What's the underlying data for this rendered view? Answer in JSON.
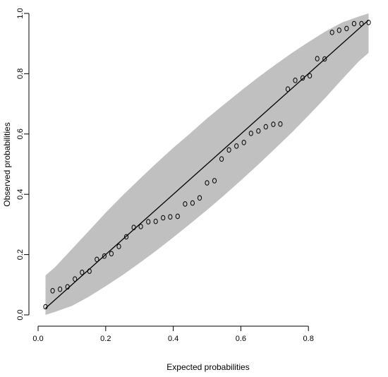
{
  "chart_data": {
    "type": "scatter",
    "title": "",
    "xlabel": "Expected probabilities",
    "ylabel": "Observed probabilities",
    "xlim": [
      0.0,
      1.0
    ],
    "ylim": [
      0.0,
      1.0
    ],
    "x_ticks": [
      "0.0",
      "0.2",
      "0.4",
      "0.6",
      "0.8"
    ],
    "y_ticks": [
      "0.0",
      "0.2",
      "0.4",
      "0.6",
      "0.8",
      "1.0"
    ],
    "grid": false,
    "legend": "none",
    "colors": {
      "band": "#c0c0c0",
      "points": "#000000",
      "line": "#000000"
    },
    "series": [
      {
        "marker": "open-circle",
        "points": [
          [
            0.022,
            0.027
          ],
          [
            0.043,
            0.08
          ],
          [
            0.065,
            0.085
          ],
          [
            0.087,
            0.093
          ],
          [
            0.109,
            0.119
          ],
          [
            0.13,
            0.141
          ],
          [
            0.152,
            0.145
          ],
          [
            0.174,
            0.184
          ],
          [
            0.196,
            0.195
          ],
          [
            0.217,
            0.203
          ],
          [
            0.239,
            0.227
          ],
          [
            0.261,
            0.259
          ],
          [
            0.283,
            0.29
          ],
          [
            0.304,
            0.293
          ],
          [
            0.326,
            0.309
          ],
          [
            0.348,
            0.31
          ],
          [
            0.37,
            0.322
          ],
          [
            0.391,
            0.325
          ],
          [
            0.413,
            0.327
          ],
          [
            0.435,
            0.368
          ],
          [
            0.457,
            0.371
          ],
          [
            0.478,
            0.388
          ],
          [
            0.5,
            0.438
          ],
          [
            0.522,
            0.445
          ],
          [
            0.543,
            0.517
          ],
          [
            0.565,
            0.547
          ],
          [
            0.587,
            0.56
          ],
          [
            0.609,
            0.572
          ],
          [
            0.63,
            0.602
          ],
          [
            0.652,
            0.61
          ],
          [
            0.674,
            0.624
          ],
          [
            0.696,
            0.632
          ],
          [
            0.717,
            0.633
          ],
          [
            0.739,
            0.749
          ],
          [
            0.761,
            0.778
          ],
          [
            0.783,
            0.786
          ],
          [
            0.804,
            0.793
          ],
          [
            0.826,
            0.85
          ],
          [
            0.848,
            0.849
          ],
          [
            0.87,
            0.937
          ],
          [
            0.891,
            0.944
          ],
          [
            0.913,
            0.95
          ],
          [
            0.935,
            0.966
          ],
          [
            0.957,
            0.966
          ],
          [
            0.978,
            0.97
          ]
        ]
      }
    ],
    "reference_line": {
      "type": "diagonal",
      "from": [
        0.022,
        0.022
      ],
      "to": [
        0.978,
        0.978
      ]
    },
    "confidence_band": {
      "lower": [
        [
          0.022,
          0.0
        ],
        [
          0.05,
          0.01
        ],
        [
          0.1,
          0.03
        ],
        [
          0.15,
          0.06
        ],
        [
          0.2,
          0.095
        ],
        [
          0.25,
          0.132
        ],
        [
          0.3,
          0.172
        ],
        [
          0.35,
          0.213
        ],
        [
          0.4,
          0.257
        ],
        [
          0.45,
          0.302
        ],
        [
          0.5,
          0.348
        ],
        [
          0.55,
          0.396
        ],
        [
          0.6,
          0.446
        ],
        [
          0.65,
          0.497
        ],
        [
          0.7,
          0.55
        ],
        [
          0.75,
          0.604
        ],
        [
          0.8,
          0.661
        ],
        [
          0.85,
          0.72
        ],
        [
          0.9,
          0.782
        ],
        [
          0.95,
          0.842
        ],
        [
          0.978,
          0.869
        ]
      ],
      "upper": [
        [
          0.022,
          0.131
        ],
        [
          0.05,
          0.158
        ],
        [
          0.1,
          0.218
        ],
        [
          0.15,
          0.278
        ],
        [
          0.2,
          0.339
        ],
        [
          0.25,
          0.396
        ],
        [
          0.3,
          0.45
        ],
        [
          0.35,
          0.503
        ],
        [
          0.4,
          0.554
        ],
        [
          0.45,
          0.602
        ],
        [
          0.5,
          0.652
        ],
        [
          0.55,
          0.698
        ],
        [
          0.6,
          0.743
        ],
        [
          0.65,
          0.787
        ],
        [
          0.7,
          0.828
        ],
        [
          0.75,
          0.868
        ],
        [
          0.8,
          0.905
        ],
        [
          0.85,
          0.94
        ],
        [
          0.9,
          0.97
        ],
        [
          0.95,
          0.99
        ],
        [
          0.978,
          1.0
        ]
      ]
    }
  }
}
